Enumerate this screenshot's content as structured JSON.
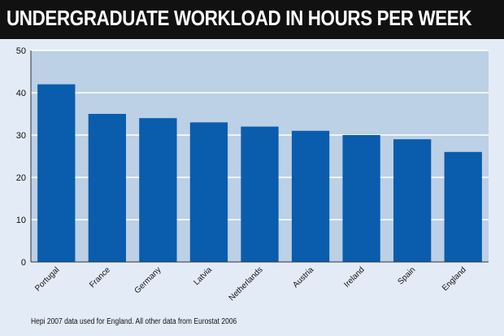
{
  "chart_data": {
    "type": "bar",
    "title": "UNDERGRADUATE WORKLOAD IN HOURS PER WEEK",
    "categories": [
      "Portugal",
      "France",
      "Germany",
      "Latvia",
      "Netherlands",
      "Austria",
      "Ireland",
      "Spain",
      "England"
    ],
    "values": [
      42,
      35,
      34,
      33,
      32,
      31,
      30,
      29,
      26
    ],
    "xlabel": "",
    "ylabel": "",
    "ylim": [
      0,
      50
    ],
    "yticks": [
      "0",
      "10",
      "20",
      "30",
      "40",
      "50"
    ],
    "grid": true,
    "legend": "none",
    "note": "Hepi 2007 data used for England. All other data from Eurostat 2006",
    "colors": {
      "bar": "#0a5cad",
      "plot_background": "#bcd0e6",
      "frame_background": "#e3ecf6",
      "title_bar": "#111111",
      "title_text": "#ffffff",
      "gridline": "#ffffff"
    }
  }
}
